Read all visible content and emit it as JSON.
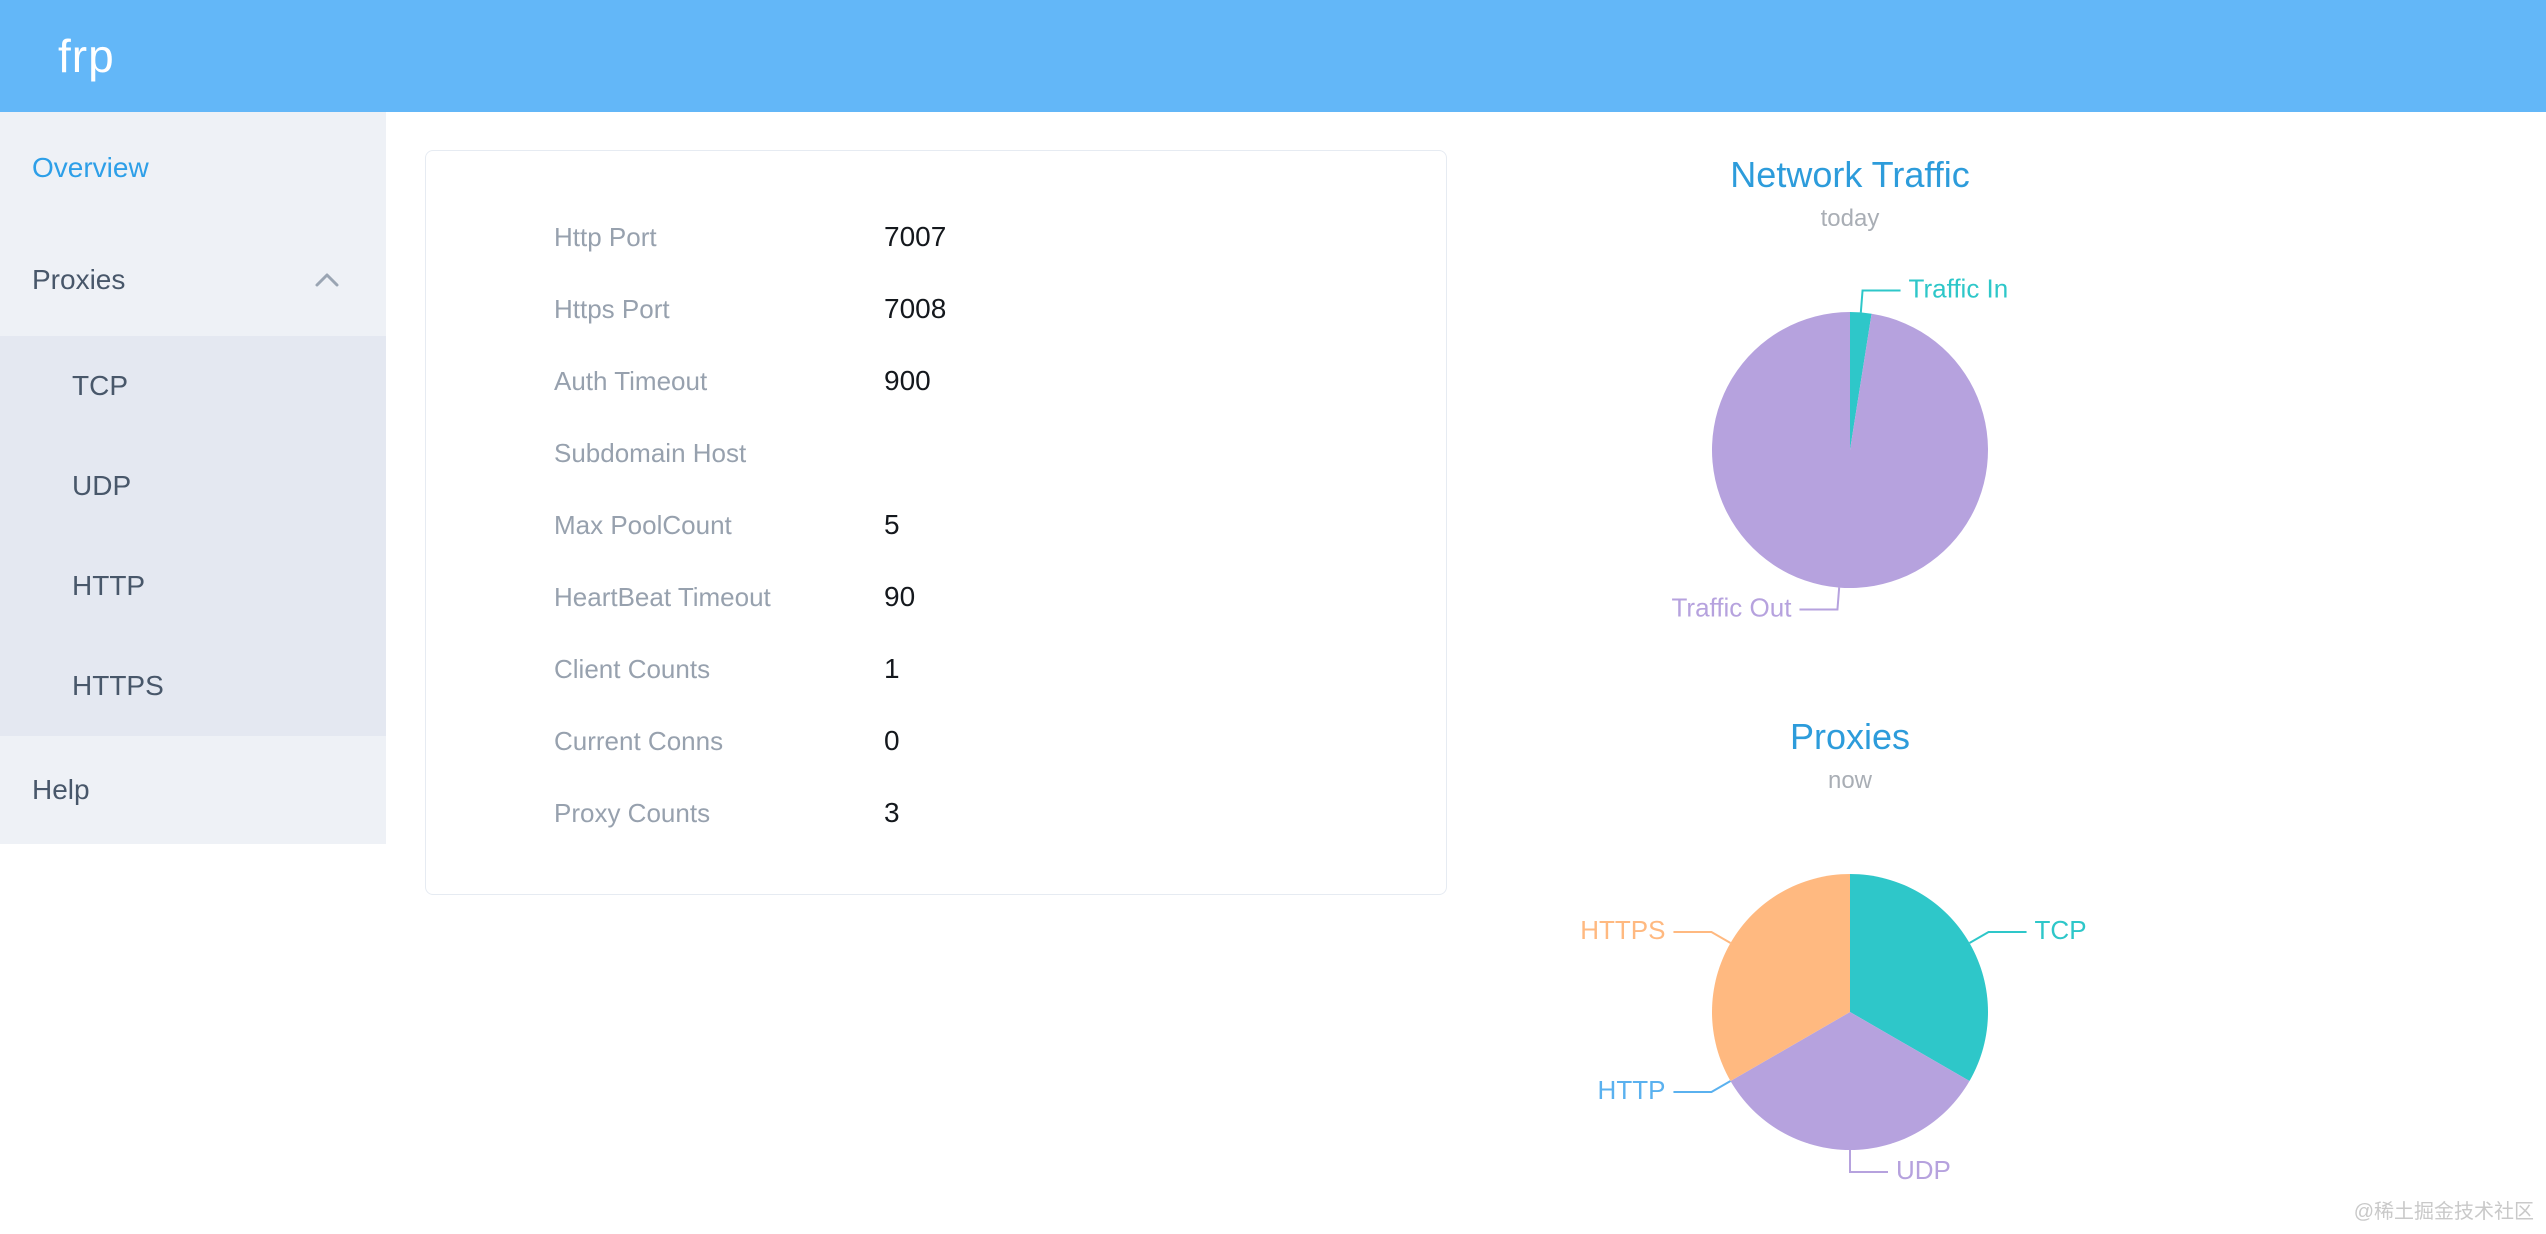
{
  "header": {
    "logo": "frp"
  },
  "colors": {
    "header_bg": "#63b7f8",
    "active_link": "#2d9fe8",
    "chart_title": "#2d9cdb",
    "teal": "#2ec7c9",
    "purple": "#b6a2de",
    "blue": "#5ab1ef",
    "orange": "#ffb980"
  },
  "sidebar": {
    "overview": "Overview",
    "proxies": "Proxies",
    "proxy_types": [
      "TCP",
      "UDP",
      "HTTP",
      "HTTPS"
    ],
    "help": "Help"
  },
  "server_info": {
    "rows": [
      {
        "label": "Http Port",
        "value": "7007"
      },
      {
        "label": "Https Port",
        "value": "7008"
      },
      {
        "label": "Auth Timeout",
        "value": "900"
      },
      {
        "label": "Subdomain Host",
        "value": ""
      },
      {
        "label": "Max PoolCount",
        "value": "5"
      },
      {
        "label": "HeartBeat Timeout",
        "value": "90"
      },
      {
        "label": "Client Counts",
        "value": "1"
      },
      {
        "label": "Current Conns",
        "value": "0"
      },
      {
        "label": "Proxy Counts",
        "value": "3"
      }
    ]
  },
  "chart_data": [
    {
      "type": "pie",
      "title": "Network Traffic",
      "subtitle": "today",
      "legend_position": "outside-callout",
      "slices": [
        {
          "label": "Traffic In",
          "value": 2.5,
          "color": "#2ec7c9"
        },
        {
          "label": "Traffic Out",
          "value": 97.5,
          "color": "#b6a2de"
        }
      ]
    },
    {
      "type": "pie",
      "title": "Proxies",
      "subtitle": "now",
      "legend_position": "outside-callout",
      "slices": [
        {
          "label": "TCP",
          "value": 1,
          "color": "#2ec7c9"
        },
        {
          "label": "UDP",
          "value": 1,
          "color": "#b6a2de"
        },
        {
          "label": "HTTP",
          "value": 0,
          "color": "#5ab1ef"
        },
        {
          "label": "HTTPS",
          "value": 1,
          "color": "#ffb980"
        }
      ]
    }
  ],
  "watermark": "@稀土掘金技术社区"
}
